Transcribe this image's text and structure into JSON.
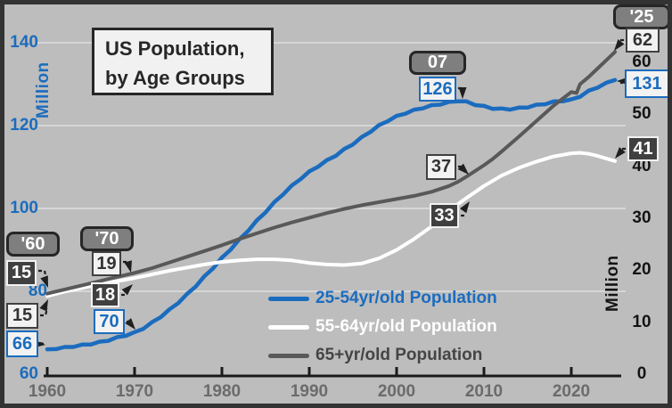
{
  "title": {
    "line1": "US Population,",
    "line2": "by Age Groups"
  },
  "axes": {
    "left": {
      "unit": "Million",
      "ticks": [
        140,
        120,
        100,
        80,
        60
      ],
      "color": "#1B6CBE"
    },
    "right": {
      "unit": "Million",
      "ticks": [
        60,
        50,
        40,
        30,
        20,
        10,
        0
      ],
      "color": "#141414"
    },
    "x": {
      "ticks": [
        1960,
        1970,
        1980,
        1990,
        2000,
        2010,
        2020
      ]
    }
  },
  "legend": [
    {
      "id": "p2554",
      "label": "25-54yr/old Population",
      "line_color": "#1B6CBE",
      "text_color": "#1B6CBE"
    },
    {
      "id": "p5564",
      "label": "55-64yr/old Population",
      "line_color": "#FFFFFF",
      "text_color": "#FFFFFF"
    },
    {
      "id": "p65",
      "label": "65+yr/old Population",
      "line_color": "#595959",
      "text_color": "#454545"
    }
  ],
  "annotations": {
    "years": [
      {
        "id": "y60",
        "text": "'60"
      },
      {
        "id": "y70",
        "text": "'70"
      },
      {
        "id": "y07",
        "text": "07"
      },
      {
        "id": "y25",
        "text": "'25"
      }
    ],
    "values": [
      {
        "id": "v60_5564",
        "text": "15",
        "style": "dark"
      },
      {
        "id": "v60_65",
        "text": "15",
        "style": "light"
      },
      {
        "id": "v60_2554",
        "text": "66",
        "style": "blue"
      },
      {
        "id": "v70_65",
        "text": "19",
        "style": "light"
      },
      {
        "id": "v70_5564",
        "text": "18",
        "style": "dark"
      },
      {
        "id": "v70_2554",
        "text": "70",
        "style": "blue"
      },
      {
        "id": "v07_2554",
        "text": "126",
        "style": "blue"
      },
      {
        "id": "v07_65",
        "text": "37",
        "style": "light"
      },
      {
        "id": "v07_5564",
        "text": "33",
        "style": "dark"
      },
      {
        "id": "v25_65",
        "text": "62",
        "style": "light"
      },
      {
        "id": "v25_2554",
        "text": "131",
        "style": "blue"
      },
      {
        "id": "v25_5564",
        "text": "41",
        "style": "dark"
      }
    ]
  },
  "colors": {
    "background": "#BDBDBD",
    "gridline": "#D6D6D6",
    "axis": "#1A1A1A",
    "blue": "#1B6CBE",
    "white": "#FFFFFF",
    "gray": "#595959",
    "annotation_ink": "#1F1F1F"
  },
  "chart_data": {
    "type": "line",
    "title": "US Population, by Age Groups",
    "x_range": [
      1960,
      2025
    ],
    "grid": "horizontal gridlines at left-axis 140/120/100/80",
    "left_axis": {
      "label": "Million",
      "range": [
        60,
        140
      ],
      "used_by": "25-54yr/old Population"
    },
    "right_axis": {
      "label": "Million",
      "range": [
        0,
        60
      ],
      "used_by": [
        "55-64yr/old Population",
        "65+yr/old Population"
      ]
    },
    "series": [
      {
        "name": "25-54yr/old Population",
        "axis": "left",
        "color": "#1B6CBE",
        "points": [
          [
            1960,
            66
          ],
          [
            1961,
            66.2
          ],
          [
            1962,
            66.4
          ],
          [
            1963,
            66.7
          ],
          [
            1964,
            67
          ],
          [
            1965,
            67.3
          ],
          [
            1966,
            67.7
          ],
          [
            1967,
            68.2
          ],
          [
            1968,
            68.8
          ],
          [
            1969,
            69.4
          ],
          [
            1970,
            70
          ],
          [
            1971,
            71.1
          ],
          [
            1972,
            72.4
          ],
          [
            1973,
            73.9
          ],
          [
            1974,
            75.5
          ],
          [
            1975,
            77.3
          ],
          [
            1976,
            79.2
          ],
          [
            1977,
            81.3
          ],
          [
            1978,
            83.5
          ],
          [
            1979,
            85.7
          ],
          [
            1980,
            88
          ],
          [
            1981,
            90.2
          ],
          [
            1982,
            92.4
          ],
          [
            1983,
            94.7
          ],
          [
            1984,
            97
          ],
          [
            1985,
            99.2
          ],
          [
            1986,
            101.4
          ],
          [
            1987,
            103.5
          ],
          [
            1988,
            105.4
          ],
          [
            1989,
            107.2
          ],
          [
            1990,
            108.8
          ],
          [
            1991,
            110.2
          ],
          [
            1992,
            111.5
          ],
          [
            1993,
            112.8
          ],
          [
            1994,
            114.2
          ],
          [
            1995,
            115.6
          ],
          [
            1996,
            117.1
          ],
          [
            1997,
            118.6
          ],
          [
            1998,
            120
          ],
          [
            1999,
            121.2
          ],
          [
            2000,
            122.2
          ],
          [
            2001,
            123
          ],
          [
            2002,
            123.7
          ],
          [
            2003,
            124.3
          ],
          [
            2004,
            124.8
          ],
          [
            2005,
            125.2
          ],
          [
            2006,
            125.6
          ],
          [
            2007,
            126
          ],
          [
            2008,
            125.7
          ],
          [
            2009,
            125.1
          ],
          [
            2010,
            124.6
          ],
          [
            2011,
            124.2
          ],
          [
            2012,
            124
          ],
          [
            2013,
            124
          ],
          [
            2014,
            124.2
          ],
          [
            2015,
            124.5
          ],
          [
            2016,
            124.9
          ],
          [
            2017,
            125.3
          ],
          [
            2018,
            125.7
          ],
          [
            2019,
            126
          ],
          [
            2020,
            126.2
          ],
          [
            2021,
            127.1
          ],
          [
            2022,
            128.3
          ],
          [
            2023,
            129.3
          ],
          [
            2024,
            130.2
          ],
          [
            2025,
            131
          ]
        ]
      },
      {
        "name": "55-64yr/old Population",
        "axis": "right",
        "color": "#FFFFFF",
        "points": [
          [
            1960,
            15
          ],
          [
            1962,
            15.9
          ],
          [
            1964,
            16.6
          ],
          [
            1966,
            17.3
          ],
          [
            1968,
            17.9
          ],
          [
            1970,
            18.5
          ],
          [
            1972,
            19.2
          ],
          [
            1974,
            19.9
          ],
          [
            1976,
            20.5
          ],
          [
            1978,
            21.1
          ],
          [
            1980,
            21.6
          ],
          [
            1982,
            21.9
          ],
          [
            1984,
            22.1
          ],
          [
            1986,
            22.1
          ],
          [
            1988,
            21.9
          ],
          [
            1990,
            21.4
          ],
          [
            1992,
            21.1
          ],
          [
            1994,
            21
          ],
          [
            1996,
            21.3
          ],
          [
            1998,
            22.3
          ],
          [
            2000,
            23.9
          ],
          [
            2002,
            26
          ],
          [
            2004,
            28.4
          ],
          [
            2006,
            31.1
          ],
          [
            2007,
            32.7
          ],
          [
            2008,
            33.9
          ],
          [
            2010,
            36.2
          ],
          [
            2012,
            38.2
          ],
          [
            2014,
            39.7
          ],
          [
            2016,
            40.9
          ],
          [
            2018,
            41.9
          ],
          [
            2020,
            42.5
          ],
          [
            2021,
            42.6
          ],
          [
            2022,
            42.4
          ],
          [
            2023,
            42
          ],
          [
            2024,
            41.5
          ],
          [
            2025,
            41
          ]
        ]
      },
      {
        "name": "65+yr/old Population",
        "axis": "right",
        "color": "#595959",
        "points": [
          [
            1960,
            15.5
          ],
          [
            1962,
            16.3
          ],
          [
            1964,
            17.1
          ],
          [
            1966,
            17.9
          ],
          [
            1968,
            18.7
          ],
          [
            1970,
            19.5
          ],
          [
            1972,
            20.4
          ],
          [
            1974,
            21.5
          ],
          [
            1976,
            22.6
          ],
          [
            1978,
            23.7
          ],
          [
            1980,
            24.8
          ],
          [
            1982,
            26
          ],
          [
            1984,
            27.1
          ],
          [
            1986,
            28.2
          ],
          [
            1988,
            29.2
          ],
          [
            1990,
            30.1
          ],
          [
            1992,
            31
          ],
          [
            1994,
            31.8
          ],
          [
            1996,
            32.5
          ],
          [
            1998,
            33.1
          ],
          [
            2000,
            33.7
          ],
          [
            2002,
            34.3
          ],
          [
            2004,
            35.1
          ],
          [
            2006,
            36.2
          ],
          [
            2007,
            37
          ],
          [
            2008,
            38
          ],
          [
            2010,
            40.2
          ],
          [
            2011,
            41.4
          ],
          [
            2012,
            42.8
          ],
          [
            2014,
            45.7
          ],
          [
            2016,
            48.7
          ],
          [
            2018,
            51.7
          ],
          [
            2020,
            54.3
          ],
          [
            2020.6,
            54.1
          ],
          [
            2021,
            55.8
          ],
          [
            2022,
            57.2
          ],
          [
            2023,
            58.8
          ],
          [
            2024,
            60.4
          ],
          [
            2025,
            62
          ]
        ]
      }
    ],
    "callouts": [
      {
        "year": 1960,
        "labels": {
          "25-54": 66,
          "55-64": 15,
          "65+": 15
        }
      },
      {
        "year": 1970,
        "labels": {
          "25-54": 70,
          "55-64": 18,
          "65+": 19
        }
      },
      {
        "year": 2007,
        "labels": {
          "25-54": 126,
          "55-64": 33,
          "65+": 37
        }
      },
      {
        "year": 2025,
        "labels": {
          "25-54": 131,
          "55-64": 41,
          "65+": 62
        }
      }
    ]
  }
}
